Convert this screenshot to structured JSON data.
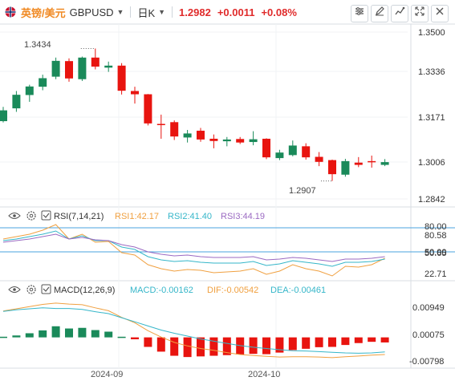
{
  "header": {
    "currency_pair": "英镑/美元",
    "symbol": "GBPUSD",
    "timeframe": "日K",
    "last_price": "1.2982",
    "change": "+0.0011",
    "change_pct": "+0.08%"
  },
  "toolbar": {
    "icons": [
      "chart-settings-icon",
      "draw-tool-icon",
      "indicator-icon",
      "expand-icon",
      "close-icon"
    ]
  },
  "price_panel": {
    "price_ticks": [
      "1.3500",
      "1.3336",
      "1.3171",
      "1.3006",
      "1.2842"
    ],
    "high_label": "1.3434",
    "low_label": "1.2907"
  },
  "rsi_panel": {
    "title": "RSI(7,14,21)",
    "rsi1_label": "RSI1:42.17",
    "rsi2_label": "RSI2:41.40",
    "rsi3_label": "RSI3:44.19",
    "ticks": [
      "80.00",
      "80.58",
      "50.00",
      "50.65",
      "22.71"
    ]
  },
  "macd_panel": {
    "title": "MACD(12,26,9)",
    "macd_label": "MACD:-0.00162",
    "dif_label": "DIF:-0.00542",
    "dea_label": "DEA:-0.00461",
    "ticks": [
      "0.00949",
      "0.00075",
      "-0.00798"
    ]
  },
  "xaxis": {
    "ticks": [
      "2024-09",
      "2024-10"
    ]
  },
  "colors": {
    "up": "#1a8a5a",
    "down": "#e8140f",
    "rsi1": "#f0a040",
    "rsi2": "#35b6c9",
    "rsi3": "#9b6ac2",
    "dif": "#f0a040",
    "dea": "#35b6c9",
    "accent": "#f08a24",
    "change": "#e02b2b",
    "hline": "#4aa3df"
  },
  "chart_data": {
    "type": "candlestick",
    "title": "英镑/美元 GBPUSD 日K",
    "y_range": [
      1.281,
      1.3525
    ],
    "candles": [
      {
        "o": 1.3145,
        "h": 1.3202,
        "l": 1.314,
        "c": 1.3188
      },
      {
        "o": 1.3196,
        "h": 1.3265,
        "l": 1.3182,
        "c": 1.325
      },
      {
        "o": 1.3249,
        "h": 1.329,
        "l": 1.3222,
        "c": 1.3283
      },
      {
        "o": 1.3282,
        "h": 1.333,
        "l": 1.3268,
        "c": 1.3316
      },
      {
        "o": 1.3322,
        "h": 1.3398,
        "l": 1.3312,
        "c": 1.3385
      },
      {
        "o": 1.3384,
        "h": 1.3395,
        "l": 1.3302,
        "c": 1.3315
      },
      {
        "o": 1.3312,
        "h": 1.3402,
        "l": 1.3305,
        "c": 1.3398
      },
      {
        "o": 1.3398,
        "h": 1.3434,
        "l": 1.3351,
        "c": 1.3362
      },
      {
        "o": 1.3358,
        "h": 1.3382,
        "l": 1.3341,
        "c": 1.3366
      },
      {
        "o": 1.3366,
        "h": 1.3376,
        "l": 1.3251,
        "c": 1.3266
      },
      {
        "o": 1.3265,
        "h": 1.3282,
        "l": 1.3215,
        "c": 1.3252
      },
      {
        "o": 1.3252,
        "h": 1.3253,
        "l": 1.3128,
        "c": 1.3136
      },
      {
        "o": 1.3134,
        "h": 1.3171,
        "l": 1.3075,
        "c": 1.3132
      },
      {
        "o": 1.3141,
        "h": 1.3148,
        "l": 1.307,
        "c": 1.3084
      },
      {
        "o": 1.308,
        "h": 1.311,
        "l": 1.306,
        "c": 1.3096
      },
      {
        "o": 1.3107,
        "h": 1.3118,
        "l": 1.3063,
        "c": 1.3072
      },
      {
        "o": 1.3075,
        "h": 1.3092,
        "l": 1.3037,
        "c": 1.3066
      },
      {
        "o": 1.3065,
        "h": 1.3082,
        "l": 1.3045,
        "c": 1.3072
      },
      {
        "o": 1.3074,
        "h": 1.3082,
        "l": 1.3054,
        "c": 1.306
      },
      {
        "o": 1.3062,
        "h": 1.3105,
        "l": 1.3049,
        "c": 1.3073
      },
      {
        "o": 1.3075,
        "h": 1.3077,
        "l": 1.2994,
        "c": 1.3001
      },
      {
        "o": 1.2998,
        "h": 1.3031,
        "l": 1.299,
        "c": 1.302
      },
      {
        "o": 1.301,
        "h": 1.3068,
        "l": 1.3005,
        "c": 1.3048
      },
      {
        "o": 1.3045,
        "h": 1.3057,
        "l": 1.2992,
        "c": 1.3001
      },
      {
        "o": 1.3003,
        "h": 1.3022,
        "l": 1.2966,
        "c": 1.2983
      },
      {
        "o": 1.299,
        "h": 1.2992,
        "l": 1.2907,
        "c": 1.2934
      },
      {
        "o": 1.2932,
        "h": 1.2995,
        "l": 1.2924,
        "c": 1.2986
      },
      {
        "o": 1.298,
        "h": 1.3002,
        "l": 1.2962,
        "c": 1.2971
      },
      {
        "o": 1.2986,
        "h": 1.3008,
        "l": 1.296,
        "c": 1.2984
      },
      {
        "o": 1.2971,
        "h": 1.2994,
        "l": 1.2966,
        "c": 1.2982
      }
    ],
    "rsi": {
      "range": [
        15,
        88
      ],
      "rsi1": [
        66,
        69,
        72,
        77,
        84,
        66,
        72,
        62,
        63,
        49,
        46,
        34,
        29,
        26,
        28,
        27,
        24,
        25,
        26,
        29,
        22,
        26,
        34,
        29,
        26,
        20,
        32,
        31,
        34,
        42
      ],
      "rsi2": [
        64,
        66,
        69,
        72,
        76,
        66,
        70,
        64,
        64,
        56,
        53,
        44,
        40,
        38,
        39,
        37,
        36,
        36,
        36,
        38,
        33,
        35,
        39,
        37,
        35,
        32,
        37,
        37,
        38,
        41
      ],
      "rsi3": [
        62,
        64,
        66,
        69,
        72,
        66,
        68,
        65,
        64,
        59,
        56,
        50,
        47,
        45,
        46,
        44,
        43,
        43,
        43,
        44,
        40,
        41,
        43,
        42,
        40,
        38,
        41,
        41,
        42,
        44
      ]
    },
    "macd": {
      "range": [
        -0.0092,
        0.0128
      ],
      "hist": [
        0.0002,
        0.0006,
        0.0013,
        0.0022,
        0.0035,
        0.0028,
        0.003,
        0.0023,
        0.0018,
        0.0002,
        -0.0006,
        -0.003,
        -0.0045,
        -0.0058,
        -0.0062,
        -0.006,
        -0.0058,
        -0.0056,
        -0.0054,
        -0.0052,
        -0.0053,
        -0.0048,
        -0.004,
        -0.0036,
        -0.0031,
        -0.003,
        -0.0024,
        -0.0018,
        -0.0014,
        -0.0016
      ],
      "dif": [
        0.0083,
        0.009,
        0.0097,
        0.0104,
        0.0108,
        0.0105,
        0.0103,
        0.0093,
        0.0084,
        0.0063,
        0.0046,
        0.0021,
        0.0001,
        -0.0016,
        -0.0027,
        -0.0035,
        -0.0041,
        -0.0048,
        -0.0054,
        -0.0057,
        -0.006,
        -0.0062,
        -0.0061,
        -0.0061,
        -0.0062,
        -0.0064,
        -0.0061,
        -0.0059,
        -0.0056,
        -0.0054
      ],
      "dea": [
        0.0082,
        0.0087,
        0.009,
        0.0093,
        0.0091,
        0.0091,
        0.0088,
        0.0081,
        0.0075,
        0.0062,
        0.0049,
        0.0036,
        0.0023,
        0.0013,
        0.0004,
        -0.0005,
        -0.0012,
        -0.0019,
        -0.0026,
        -0.0031,
        -0.0035,
        -0.0039,
        -0.0042,
        -0.0043,
        -0.0045,
        -0.0047,
        -0.0049,
        -0.005,
        -0.0049,
        -0.0046
      ]
    }
  }
}
